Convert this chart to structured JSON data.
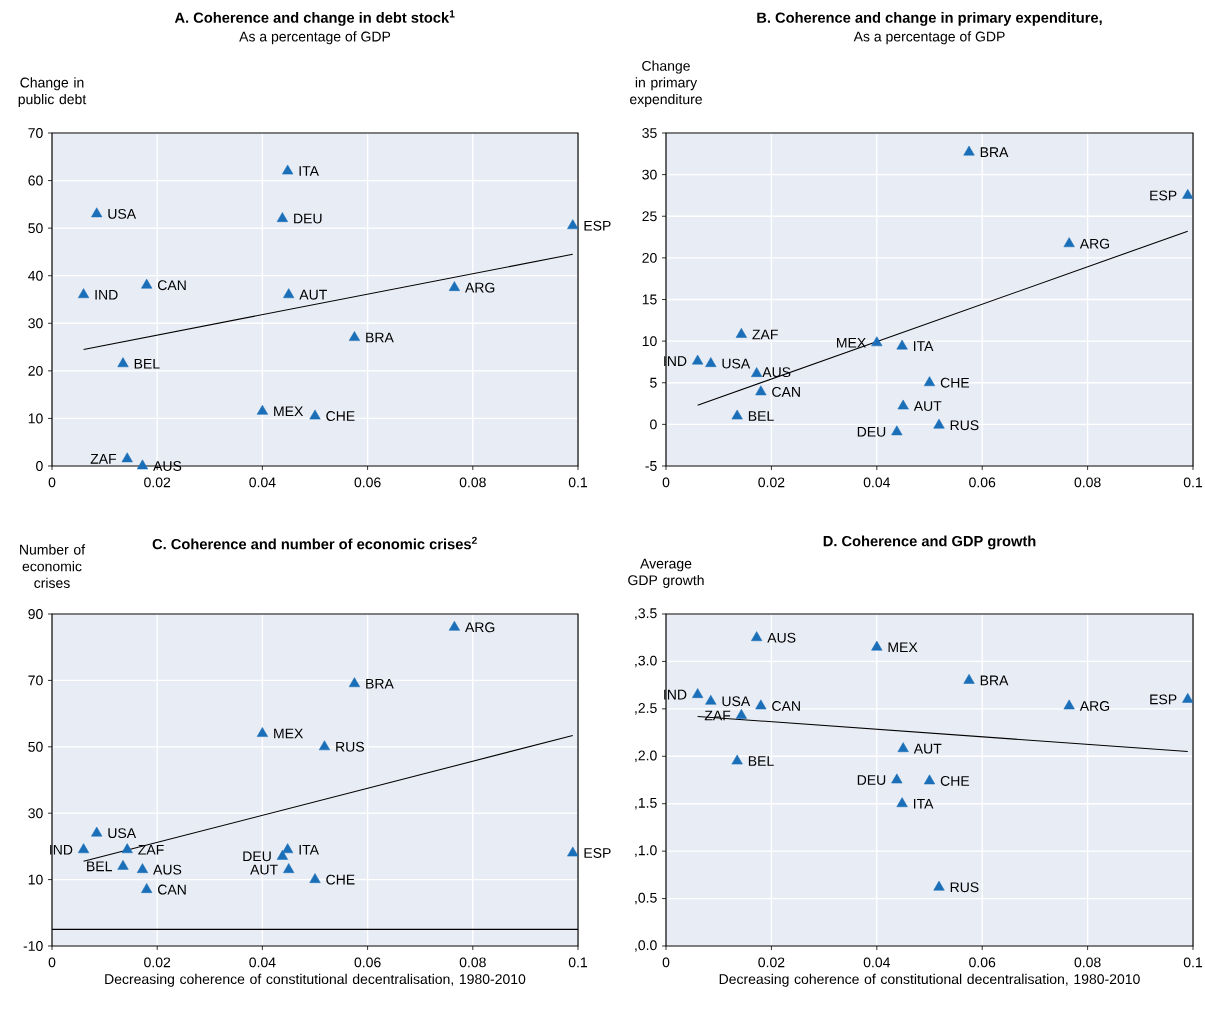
{
  "chart_data": [
    {
      "type": "scatter",
      "title": "A. Coherence and change in debt stock$^{1}$",
      "subtitle": "As a percentage of GDP",
      "ylabel": "Change in public debt",
      "xlim": [
        0,
        0.1
      ],
      "ylim": [
        0,
        70
      ],
      "xticks": [
        0,
        0.02,
        0.04,
        0.06,
        0.08,
        0.1
      ],
      "yticks": [
        0,
        10,
        20,
        30,
        40,
        50,
        60,
        70
      ],
      "grid": true,
      "series": [
        {
          "type": "scatter",
          "marker": "triangle",
          "color": "#1a6fb8",
          "x": [
            0.0448,
            0.0085,
            0.0438,
            0.099,
            0.018,
            0.006,
            0.045,
            0.0765,
            0.0575,
            0.0135,
            0.04,
            0.05,
            0.0143,
            0.0172
          ],
          "values": [
            62,
            53,
            52,
            50.5,
            38,
            36,
            36,
            37.5,
            27,
            21.5,
            11.5,
            10.5,
            1.5,
            0
          ]
        },
        {
          "type": "line",
          "color": "#000000",
          "x": [
            0.006,
            0.099
          ],
          "values": [
            24.5,
            44.5
          ]
        }
      ],
      "annotations": [
        {
          "text": "ITA",
          "x": 0.0448,
          "y": 62
        },
        {
          "text": "USA",
          "x": 0.0085,
          "y": 53
        },
        {
          "text": "DEU",
          "x": 0.0438,
          "y": 52
        },
        {
          "text": "ESP",
          "x": 0.099,
          "y": 50.5
        },
        {
          "text": "CAN",
          "x": 0.018,
          "y": 38
        },
        {
          "text": "IND",
          "x": 0.006,
          "y": 36
        },
        {
          "text": "AUT",
          "x": 0.045,
          "y": 36
        },
        {
          "text": "ARG",
          "x": 0.0765,
          "y": 37.5
        },
        {
          "text": "BRA",
          "x": 0.0575,
          "y": 27
        },
        {
          "text": "BEL",
          "x": 0.0135,
          "y": 21.5
        },
        {
          "text": "MEX",
          "x": 0.04,
          "y": 11.5
        },
        {
          "text": "CHE",
          "x": 0.05,
          "y": 10.5
        },
        {
          "text": "ZAF",
          "x": 0.0143,
          "y": 1.5
        },
        {
          "text": "AUS",
          "x": 0.0172,
          "y": 0
        }
      ]
    },
    {
      "type": "scatter",
      "title": "B. Coherence  and change in primary expenditure,",
      "subtitle": "As a percentage of GDP",
      "ylabel": "Change in primary expenditure",
      "xlim": [
        0,
        0.1
      ],
      "ylim": [
        -5,
        35
      ],
      "xticks": [
        0,
        0.02,
        0.04,
        0.06,
        0.08,
        0.1
      ],
      "yticks": [
        -5,
        0,
        5,
        10,
        15,
        20,
        25,
        30,
        35
      ],
      "grid": true,
      "series": [
        {
          "type": "scatter",
          "marker": "triangle",
          "color": "#1a6fb8",
          "x": [
            0.0575,
            0.099,
            0.0765,
            0.0143,
            0.04,
            0.0448,
            0.006,
            0.0085,
            0.0172,
            0.05,
            0.018,
            0.045,
            0.0135,
            0.0518,
            0.0438
          ],
          "values": [
            32.7,
            27.5,
            21.7,
            10.8,
            9.8,
            9.4,
            7.6,
            7.3,
            6.1,
            5,
            3.9,
            2.2,
            1,
            -0.1,
            -0.9
          ]
        },
        {
          "type": "line",
          "color": "#000000",
          "x": [
            0.006,
            0.099
          ],
          "values": [
            2.3,
            23.2
          ]
        }
      ],
      "annotations": [
        {
          "text": "BRA",
          "x": 0.0575,
          "y": 32.7
        },
        {
          "text": "ESP",
          "x": 0.099,
          "y": 27.5
        },
        {
          "text": "ARG",
          "x": 0.0765,
          "y": 21.7
        },
        {
          "text": "ZAF",
          "x": 0.0143,
          "y": 10.8
        },
        {
          "text": "MEX",
          "x": 0.04,
          "y": 9.8
        },
        {
          "text": "ITA",
          "x": 0.0448,
          "y": 9.4
        },
        {
          "text": "IND",
          "x": 0.006,
          "y": 7.6
        },
        {
          "text": "USA",
          "x": 0.0085,
          "y": 7.3
        },
        {
          "text": "AUS",
          "x": 0.0172,
          "y": 6.1
        },
        {
          "text": "CHE",
          "x": 0.05,
          "y": 5
        },
        {
          "text": "CAN",
          "x": 0.018,
          "y": 3.9
        },
        {
          "text": "AUT",
          "x": 0.045,
          "y": 2.2
        },
        {
          "text": "BEL",
          "x": 0.0135,
          "y": 1
        },
        {
          "text": "RUS",
          "x": 0.0518,
          "y": -0.1
        },
        {
          "text": "DEU",
          "x": 0.0438,
          "y": -0.9
        }
      ]
    },
    {
      "type": "scatter",
      "title": "C. Coherence and number of economic crises$^{2}$",
      "xlabel": "Decreasing coherence of constitutional decentralisation, 1980-2010",
      "ylabel": "Number of economic crises",
      "xlim": [
        0,
        0.1
      ],
      "ylim": [
        -10,
        90
      ],
      "xticks": [
        0,
        0.02,
        0.04,
        0.06,
        0.08,
        0.1
      ],
      "yticks": [
        -10,
        10,
        30,
        50,
        70,
        90
      ],
      "grid": true,
      "series": [
        {
          "type": "scatter",
          "marker": "triangle",
          "color": "#1a6fb8",
          "x": [
            0.0765,
            0.0575,
            0.04,
            0.0518,
            0.0085,
            0.006,
            0.0143,
            0.0135,
            0.0172,
            0.018,
            0.0438,
            0.0448,
            0.045,
            0.05,
            0.099
          ],
          "values": [
            86,
            69,
            54,
            50,
            24,
            19,
            19,
            14,
            13,
            7,
            17,
            19,
            13,
            10,
            18
          ]
        },
        {
          "type": "line",
          "color": "#000000",
          "x": [
            0.006,
            0.099
          ],
          "values": [
            15.5,
            53.4
          ]
        }
      ],
      "ref_lines": [
        {
          "axis": "y",
          "value": -5,
          "color": "#000000"
        }
      ],
      "annotations": [
        {
          "text": "ARG",
          "x": 0.0765,
          "y": 86
        },
        {
          "text": "BRA",
          "x": 0.0575,
          "y": 69
        },
        {
          "text": "MEX",
          "x": 0.04,
          "y": 54
        },
        {
          "text": "RUS",
          "x": 0.0518,
          "y": 50
        },
        {
          "text": "USA",
          "x": 0.0085,
          "y": 24
        },
        {
          "text": "IND",
          "x": 0.006,
          "y": 19
        },
        {
          "text": "ZAF",
          "x": 0.0143,
          "y": 19
        },
        {
          "text": "BEL",
          "x": 0.0135,
          "y": 14
        },
        {
          "text": "AUS",
          "x": 0.0172,
          "y": 13
        },
        {
          "text": "CAN",
          "x": 0.018,
          "y": 7
        },
        {
          "text": "DEU",
          "x": 0.0438,
          "y": 17
        },
        {
          "text": "ITA",
          "x": 0.0448,
          "y": 19
        },
        {
          "text": "AUT",
          "x": 0.045,
          "y": 13
        },
        {
          "text": "CHE",
          "x": 0.05,
          "y": 10
        },
        {
          "text": "ESP",
          "x": 0.099,
          "y": 18
        }
      ]
    },
    {
      "type": "scatter",
      "title": "D. Coherence and GDP growth",
      "xlabel": "Decreasing coherence of constitutional decentralisation, 1980-2010",
      "ylabel": "Average GDP growth",
      "xlim": [
        0,
        0.1
      ],
      "ylim": [
        0,
        3.5
      ],
      "xticks": [
        0,
        0.02,
        0.04,
        0.06,
        0.08,
        0.1
      ],
      "yticks": [
        {
          "value": 0,
          "label": ",0.0"
        },
        {
          "value": 0.5,
          "label": ",0.5"
        },
        {
          "value": 1,
          "label": ",1.0"
        },
        {
          "value": 1.5,
          "label": ",1.5"
        },
        {
          "value": 2,
          "label": ",2.0"
        },
        {
          "value": 2.5,
          "label": ",2.5"
        },
        {
          "value": 3,
          "label": ",3.0"
        },
        {
          "value": 3.5,
          "label": ",3.5"
        }
      ],
      "grid": true,
      "series": [
        {
          "type": "scatter",
          "marker": "triangle",
          "color": "#1a6fb8",
          "x": [
            0.0172,
            0.04,
            0.0575,
            0.006,
            0.0085,
            0.018,
            0.0143,
            0.0765,
            0.099,
            0.045,
            0.0135,
            0.0438,
            0.05,
            0.0448,
            0.0518
          ],
          "values": [
            3.25,
            3.15,
            2.8,
            2.65,
            2.58,
            2.53,
            2.43,
            2.53,
            2.6,
            2.08,
            1.95,
            1.75,
            1.74,
            1.5,
            0.62
          ]
        },
        {
          "type": "line",
          "color": "#000000",
          "x": [
            0.006,
            0.099
          ],
          "values": [
            2.42,
            2.05
          ]
        }
      ],
      "annotations": [
        {
          "text": "AUS",
          "x": 0.0172,
          "y": 3.25
        },
        {
          "text": "MEX",
          "x": 0.04,
          "y": 3.15
        },
        {
          "text": "BRA",
          "x": 0.0575,
          "y": 2.8
        },
        {
          "text": "IND",
          "x": 0.006,
          "y": 2.65
        },
        {
          "text": "USA",
          "x": 0.0085,
          "y": 2.58
        },
        {
          "text": "CAN",
          "x": 0.018,
          "y": 2.53
        },
        {
          "text": "ZAF",
          "x": 0.0143,
          "y": 2.43
        },
        {
          "text": "ARG",
          "x": 0.0765,
          "y": 2.53
        },
        {
          "text": "ESP",
          "x": 0.099,
          "y": 2.6
        },
        {
          "text": "AUT",
          "x": 0.045,
          "y": 2.08
        },
        {
          "text": "BEL",
          "x": 0.0135,
          "y": 1.95
        },
        {
          "text": "DEU",
          "x": 0.0438,
          "y": 1.75
        },
        {
          "text": "CHE",
          "x": 0.05,
          "y": 1.74
        },
        {
          "text": "ITA",
          "x": 0.0448,
          "y": 1.5
        },
        {
          "text": "RUS",
          "x": 0.0518,
          "y": 0.62
        }
      ]
    }
  ]
}
